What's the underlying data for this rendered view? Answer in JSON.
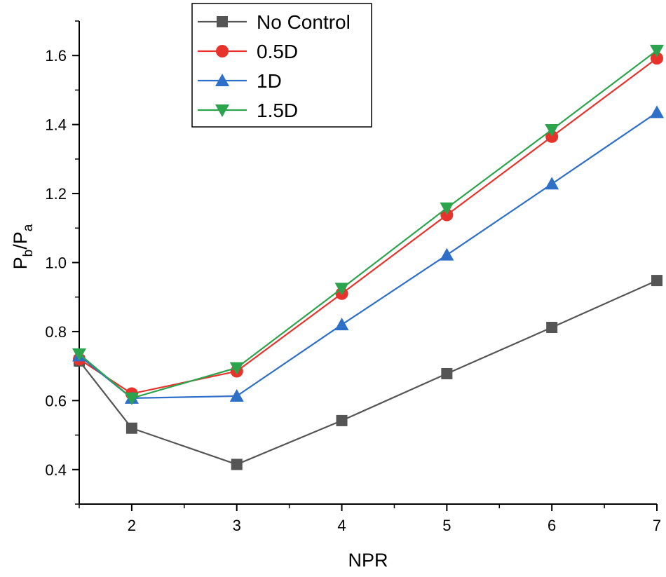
{
  "chart_data": {
    "type": "line",
    "title": "",
    "xlabel": "NPR",
    "ylabel": {
      "main": "P",
      "sub1": "b",
      "sep": "/",
      "main2": "P",
      "sub2": "a"
    },
    "xlim": [
      1.5,
      7
    ],
    "ylim": [
      0.3,
      1.7
    ],
    "xticks": [
      2,
      3,
      4,
      5,
      6,
      7
    ],
    "xtick_labels": [
      "2",
      "3",
      "4",
      "5",
      "6",
      "7"
    ],
    "yticks": [
      0.4,
      0.6,
      0.8,
      1.0,
      1.2,
      1.4,
      1.6
    ],
    "ytick_labels": [
      "0.4",
      "0.6",
      "0.8",
      "1.0",
      "1.2",
      "1.4",
      "1.6"
    ],
    "grid": false,
    "legend_position": "top-left",
    "x": [
      1.5,
      2,
      3,
      4,
      5,
      6,
      7
    ],
    "series": [
      {
        "name": "No Control",
        "color": "#555555",
        "marker": "square",
        "values": [
          0.715,
          0.52,
          0.415,
          0.542,
          0.678,
          0.812,
          0.948
        ]
      },
      {
        "name": "0.5D",
        "color": "#e8332c",
        "marker": "circle",
        "values": [
          0.72,
          0.62,
          0.685,
          0.91,
          1.138,
          1.365,
          1.592
        ]
      },
      {
        "name": "1D",
        "color": "#2e6fc7",
        "marker": "triangle-up",
        "values": [
          0.73,
          0.607,
          0.613,
          0.82,
          1.022,
          1.228,
          1.435
        ]
      },
      {
        "name": "1.5D",
        "color": "#2ca44e",
        "marker": "triangle-down",
        "values": [
          0.735,
          0.607,
          0.695,
          0.925,
          1.158,
          1.385,
          1.615
        ]
      }
    ]
  }
}
